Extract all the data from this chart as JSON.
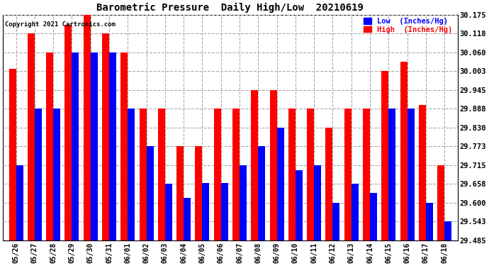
{
  "title": "Barometric Pressure  Daily High/Low  20210619",
  "copyright": "Copyright 2021 Cartronics.com",
  "legend_low": "Low  (Inches/Hg)",
  "legend_high": "High  (Inches/Hg)",
  "dates": [
    "05/26",
    "05/27",
    "05/28",
    "05/29",
    "05/30",
    "05/31",
    "06/01",
    "06/02",
    "06/03",
    "06/04",
    "06/05",
    "06/06",
    "06/07",
    "06/08",
    "06/09",
    "06/10",
    "06/11",
    "06/12",
    "06/13",
    "06/14",
    "06/15",
    "06/16",
    "06/17",
    "06/18"
  ],
  "high": [
    30.01,
    30.118,
    30.06,
    30.145,
    30.175,
    30.118,
    30.06,
    29.888,
    29.888,
    29.773,
    29.773,
    29.888,
    29.888,
    29.945,
    29.945,
    29.888,
    29.888,
    29.83,
    29.888,
    29.888,
    30.003,
    30.032,
    29.9,
    29.715
  ],
  "low": [
    29.715,
    29.888,
    29.888,
    30.06,
    30.06,
    30.06,
    29.888,
    29.773,
    29.658,
    29.615,
    29.66,
    29.66,
    29.715,
    29.773,
    29.83,
    29.7,
    29.715,
    29.6,
    29.658,
    29.63,
    29.888,
    29.888,
    29.6,
    29.543
  ],
  "ylim_min": 29.485,
  "ylim_max": 30.175,
  "yticks": [
    29.485,
    29.543,
    29.6,
    29.658,
    29.715,
    29.773,
    29.83,
    29.888,
    29.945,
    30.003,
    30.06,
    30.118,
    30.175
  ],
  "bg_color": "#ffffff",
  "plot_bg_color": "#ffffff",
  "grid_color": "#aaaaaa",
  "high_color": "#ff0000",
  "low_color": "#0000ff",
  "title_color": "#000000",
  "copyright_color": "#000000",
  "bar_width": 0.38
}
